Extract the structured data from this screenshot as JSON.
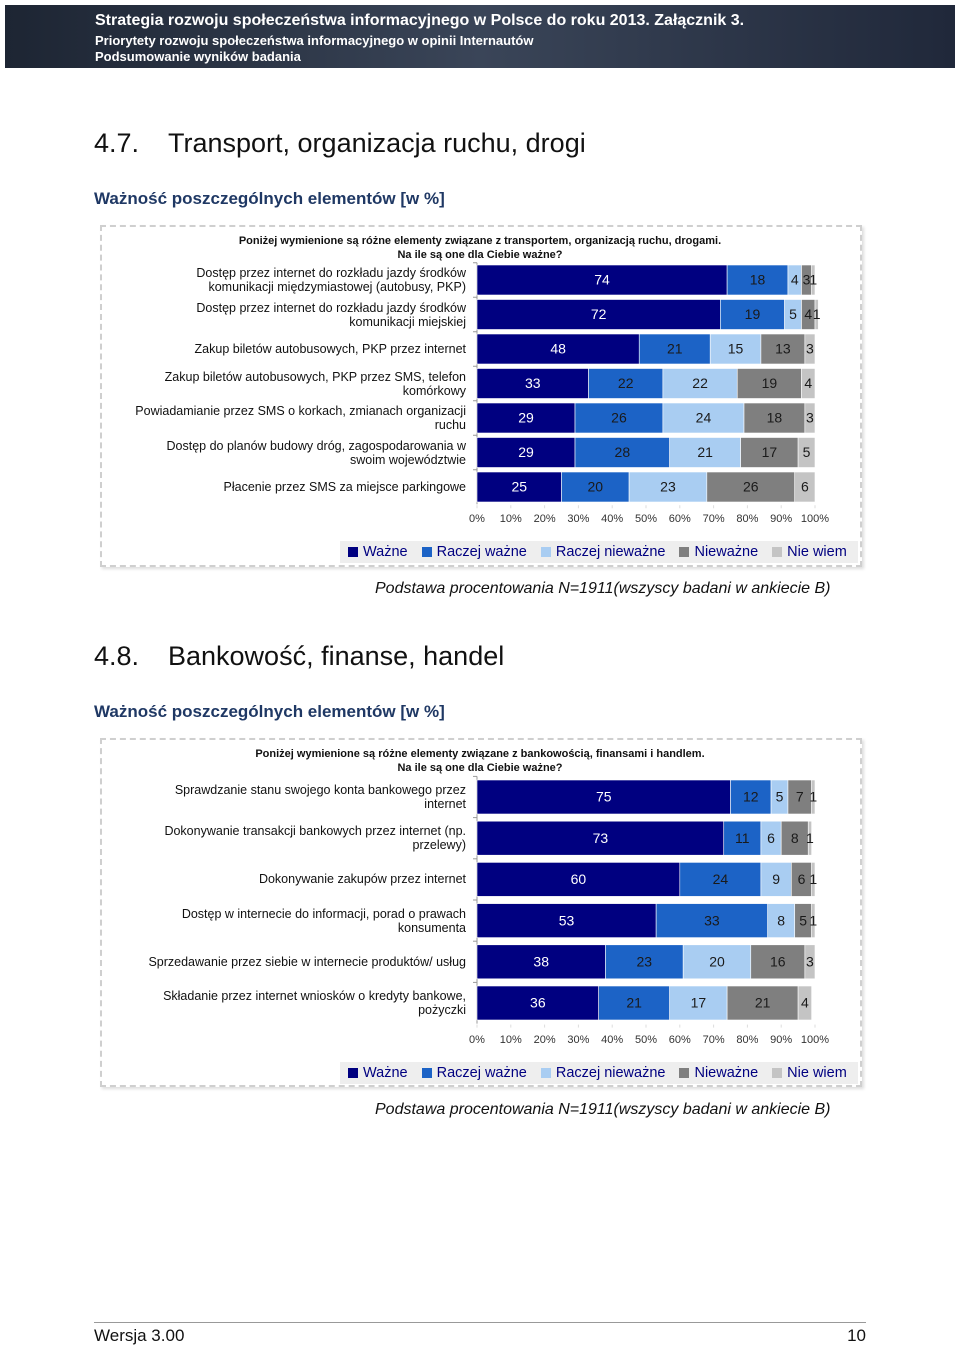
{
  "header": {
    "title": "Strategia rozwoju społeczeństwa informacyjnego w Polsce do roku 2013. Załącznik 3.",
    "line2": "Priorytety rozwoju społeczeństwa informacyjnego w opinii Internautów",
    "line3": "Podsumowanie wyników badania"
  },
  "sections": [
    {
      "number": "4.7.",
      "title": "Transport, organizacja ruchu, drogi",
      "subtitle": "Ważność poszczególnych elementów [w %]",
      "note": "Podstawa procentowania N=1911(wszyscy badani w ankiecie B)"
    },
    {
      "number": "4.8.",
      "title": "Bankowość, finanse, handel",
      "subtitle": "Ważność poszczególnych elementów [w %]",
      "note": "Podstawa procentowania N=1911(wszyscy badani w ankiecie B)"
    }
  ],
  "chart_data": [
    {
      "type": "bar",
      "orientation": "horizontal",
      "stacked": true,
      "question": [
        "Poniżej  wymienione są różne elementy związane z  transportem, organizacją ruchu, drogami.",
        "Na ile są one dla Ciebie ważne?"
      ],
      "categories": [
        "Dostęp przez internet do rozkładu jazdy środków komunikacji międzymiastowej (autobusy, PKP)",
        "Dostęp przez internet do rozkładu jazdy środków komunikacji miejskiej",
        "Zakup biletów autobusowych, PKP przez internet",
        "Zakup biletów autobusowych, PKP przez SMS, telefon komórkowy",
        "Powiadamianie przez SMS o korkach, zmianach organizacji ruchu",
        "Dostęp do planów budowy dróg, zagospodarowania w swoim województwie",
        "Płacenie przez SMS za miejsce parkingowe"
      ],
      "series": [
        {
          "name": "Ważne",
          "color": "#000080",
          "values": [
            74,
            72,
            48,
            33,
            29,
            29,
            25
          ]
        },
        {
          "name": "Raczej ważne",
          "color": "#1c63c6",
          "values": [
            18,
            19,
            21,
            22,
            26,
            28,
            20
          ]
        },
        {
          "name": "Raczej nieważne",
          "color": "#a9cdf2",
          "values": [
            4,
            5,
            15,
            22,
            24,
            21,
            23
          ]
        },
        {
          "name": "Nieważne",
          "color": "#7f7f7f",
          "values": [
            3,
            4,
            13,
            19,
            18,
            17,
            26
          ]
        },
        {
          "name": "Nie wiem",
          "color": "#c4c4c4",
          "values": [
            1,
            1,
            3,
            4,
            3,
            5,
            6
          ]
        }
      ],
      "xlim": [
        0,
        100
      ],
      "xticks": [
        {
          "value": 0,
          "label": "0%"
        },
        {
          "value": 10,
          "label": "10%"
        },
        {
          "value": 20,
          "label": "20%"
        },
        {
          "value": 30,
          "label": "30%"
        },
        {
          "value": 40,
          "label": "40%"
        },
        {
          "value": 50,
          "label": "50%"
        },
        {
          "value": 60,
          "label": "60%"
        },
        {
          "value": 70,
          "label": "70%"
        },
        {
          "value": 80,
          "label": "80%"
        },
        {
          "value": 90,
          "label": "90%"
        },
        {
          "value": 100,
          "label": "100%"
        }
      ]
    },
    {
      "type": "bar",
      "orientation": "horizontal",
      "stacked": true,
      "question": [
        "Poniżej  wymienione są różne elementy związane z  bankowością, finansami i handlem.",
        "Na ile są one dla Ciebie ważne?"
      ],
      "categories": [
        "Sprawdzanie stanu swojego konta bankowego przez internet",
        "Dokonywanie transakcji bankowych przez internet (np. przelewy)",
        "Dokonywanie zakupów przez internet",
        "Dostęp w internecie do informacji, porad o prawach konsumenta",
        "Sprzedawanie przez siebie w internecie produktów/ usług",
        "Składanie przez internet wniosków o kredyty bankowe, pożyczki"
      ],
      "series": [
        {
          "name": "Ważne",
          "color": "#000080",
          "values": [
            75,
            73,
            60,
            53,
            38,
            36
          ]
        },
        {
          "name": "Raczej ważne",
          "color": "#1c63c6",
          "values": [
            12,
            11,
            24,
            33,
            23,
            21
          ]
        },
        {
          "name": "Raczej nieważne",
          "color": "#a9cdf2",
          "values": [
            5,
            6,
            9,
            8,
            20,
            17
          ]
        },
        {
          "name": "Nieważne",
          "color": "#7f7f7f",
          "values": [
            7,
            8,
            6,
            5,
            16,
            21
          ]
        },
        {
          "name": "Nie wiem",
          "color": "#c4c4c4",
          "values": [
            1,
            1,
            1,
            1,
            3,
            4
          ]
        }
      ],
      "xlim": [
        0,
        100
      ],
      "xticks": [
        {
          "value": 0,
          "label": "0%"
        },
        {
          "value": 10,
          "label": "10%"
        },
        {
          "value": 20,
          "label": "20%"
        },
        {
          "value": 30,
          "label": "30%"
        },
        {
          "value": 40,
          "label": "40%"
        },
        {
          "value": 50,
          "label": "50%"
        },
        {
          "value": 60,
          "label": "60%"
        },
        {
          "value": 70,
          "label": "70%"
        },
        {
          "value": 80,
          "label": "80%"
        },
        {
          "value": 90,
          "label": "90%"
        },
        {
          "value": 100,
          "label": "100%"
        }
      ]
    }
  ],
  "footer": {
    "version": "Wersja 3.00",
    "page": "10"
  }
}
